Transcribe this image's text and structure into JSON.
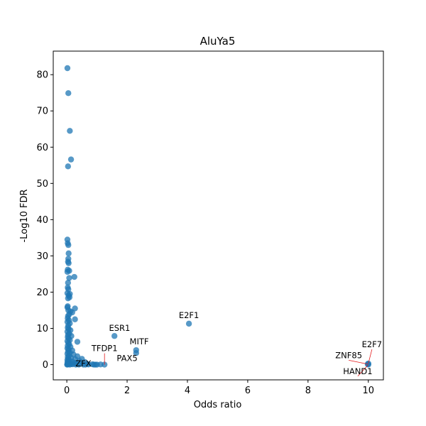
{
  "chart_data": {
    "type": "scatter",
    "title": "AluYa5",
    "xlabel": "Odds ratio",
    "ylabel": "-Log10 FDR",
    "xlim": [
      -0.45,
      10.5
    ],
    "ylim": [
      -4.2,
      86.5
    ],
    "xticks": [
      0,
      2,
      4,
      6,
      8,
      10
    ],
    "yticks": [
      0,
      10,
      20,
      30,
      40,
      50,
      60,
      70,
      80
    ],
    "grid": false,
    "point_color": "#1f77b4",
    "points": [
      [
        0.02,
        81.8
      ],
      [
        0.05,
        74.9
      ],
      [
        0.1,
        64.5
      ],
      [
        0.14,
        56.6
      ],
      [
        0.04,
        54.7
      ],
      [
        0.02,
        34.5
      ],
      [
        0.03,
        33.5
      ],
      [
        0.05,
        33.0
      ],
      [
        0.06,
        30.7
      ],
      [
        0.05,
        29.2
      ],
      [
        0.04,
        28.4
      ],
      [
        0.06,
        28.0
      ],
      [
        0.03,
        26.2
      ],
      [
        0.08,
        25.9
      ],
      [
        0.02,
        25.6
      ],
      [
        0.25,
        24.2
      ],
      [
        0.08,
        23.9
      ],
      [
        0.04,
        22.6
      ],
      [
        0.03,
        21.3
      ],
      [
        0.05,
        20.8
      ],
      [
        0.02,
        19.7
      ],
      [
        0.1,
        19.5
      ],
      [
        0.06,
        19.1
      ],
      [
        0.09,
        18.6
      ],
      [
        0.04,
        18.3
      ],
      [
        0.03,
        16.1
      ],
      [
        0.02,
        15.8
      ],
      [
        0.27,
        15.5
      ],
      [
        0.05,
        15.0
      ],
      [
        0.12,
        14.7
      ],
      [
        0.18,
        14.4
      ],
      [
        0.08,
        13.9
      ],
      [
        0.04,
        13.4
      ],
      [
        0.03,
        12.8
      ],
      [
        0.27,
        12.5
      ],
      [
        0.07,
        12.2
      ],
      [
        0.02,
        11.8
      ],
      [
        0.1,
        11.4
      ],
      [
        0.05,
        10.8
      ],
      [
        0.03,
        10.2
      ],
      [
        0.06,
        9.8
      ],
      [
        0.12,
        9.5
      ],
      [
        0.02,
        9.1
      ],
      [
        0.08,
        8.6
      ],
      [
        0.04,
        8.2
      ],
      [
        0.15,
        7.9
      ],
      [
        0.03,
        7.6
      ],
      [
        0.06,
        7.2
      ],
      [
        0.1,
        6.8
      ],
      [
        0.02,
        6.5
      ],
      [
        0.35,
        6.3
      ],
      [
        0.05,
        6.0
      ],
      [
        0.08,
        5.6
      ],
      [
        0.03,
        5.2
      ],
      [
        0.12,
        4.9
      ],
      [
        0.02,
        4.5
      ],
      [
        0.06,
        4.2
      ],
      [
        0.18,
        3.9
      ],
      [
        0.04,
        3.6
      ],
      [
        0.1,
        3.3
      ],
      [
        0.02,
        3.0
      ],
      [
        0.22,
        2.8
      ],
      [
        0.07,
        2.5
      ],
      [
        0.35,
        2.3
      ],
      [
        0.03,
        2.1
      ],
      [
        0.14,
        1.9
      ],
      [
        0.05,
        1.7
      ],
      [
        0.28,
        1.5
      ],
      [
        0.02,
        1.3
      ],
      [
        0.5,
        1.6
      ],
      [
        0.09,
        1.1
      ],
      [
        0.42,
        1.0
      ],
      [
        0.04,
        0.9
      ],
      [
        0.18,
        0.8
      ],
      [
        0.6,
        0.7
      ],
      [
        0.02,
        0.6
      ],
      [
        0.26,
        0.5
      ],
      [
        0.07,
        0.4
      ],
      [
        0.48,
        0.4
      ],
      [
        0.12,
        0.3
      ],
      [
        0.03,
        0.2
      ],
      [
        0.34,
        0.2
      ],
      [
        0.68,
        0.2
      ],
      [
        0.05,
        0.1
      ],
      [
        0.2,
        0.1
      ],
      [
        0.02,
        0.05
      ],
      [
        0.1,
        0.0
      ],
      [
        0.4,
        0.0
      ],
      [
        0.55,
        0.0
      ],
      [
        0.62,
        0.0
      ],
      [
        0.72,
        0.05
      ],
      [
        0.15,
        0.15
      ],
      [
        0.85,
        0.1
      ],
      [
        0.9,
        0.0
      ],
      [
        0.95,
        0.0
      ],
      [
        1.0,
        0.0
      ],
      [
        1.12,
        0.05
      ],
      [
        1.25,
        0.0
      ],
      [
        0.3,
        0.0
      ],
      [
        0.01,
        0.0
      ],
      [
        1.58,
        7.9
      ],
      [
        4.05,
        11.3
      ],
      [
        2.3,
        4.0
      ],
      [
        2.3,
        3.2
      ],
      [
        10.0,
        0.3
      ],
      [
        10.0,
        0.0
      ],
      [
        9.98,
        0.15
      ]
    ],
    "annotations": [
      {
        "text": "E2F1",
        "x": 4.05,
        "y": 11.3,
        "tx": 4.05,
        "ty": 12.8,
        "anchor": "middle",
        "leader": false
      },
      {
        "text": "ESR1",
        "x": 1.58,
        "y": 7.9,
        "tx": 1.75,
        "ty": 9.3,
        "anchor": "middle",
        "leader": false
      },
      {
        "text": "MITF",
        "x": 2.3,
        "y": 4.0,
        "tx": 2.4,
        "ty": 5.6,
        "anchor": "middle",
        "leader": false
      },
      {
        "text": "TFDP1",
        "x": 1.25,
        "y": 0.0,
        "tx": 1.25,
        "ty": 3.7,
        "anchor": "middle",
        "leader": true
      },
      {
        "text": "PAX5",
        "x": 2.3,
        "y": 3.2,
        "tx": 2.0,
        "ty": 1.0,
        "anchor": "middle",
        "leader": false
      },
      {
        "text": "ZFX",
        "x": 0.6,
        "y": 0.3,
        "tx": 0.55,
        "ty": -0.5,
        "anchor": "middle",
        "leader": false
      },
      {
        "text": "E2F7",
        "x": 10.0,
        "y": 0.3,
        "tx": 10.12,
        "ty": 4.8,
        "anchor": "middle",
        "leader": true
      },
      {
        "text": "ZNF85",
        "x": 9.98,
        "y": 0.15,
        "tx": 9.35,
        "ty": 1.8,
        "anchor": "middle",
        "leader": true
      },
      {
        "text": "HAND1",
        "x": 10.0,
        "y": 0.0,
        "tx": 9.65,
        "ty": -2.6,
        "anchor": "middle",
        "leader": true
      }
    ]
  }
}
